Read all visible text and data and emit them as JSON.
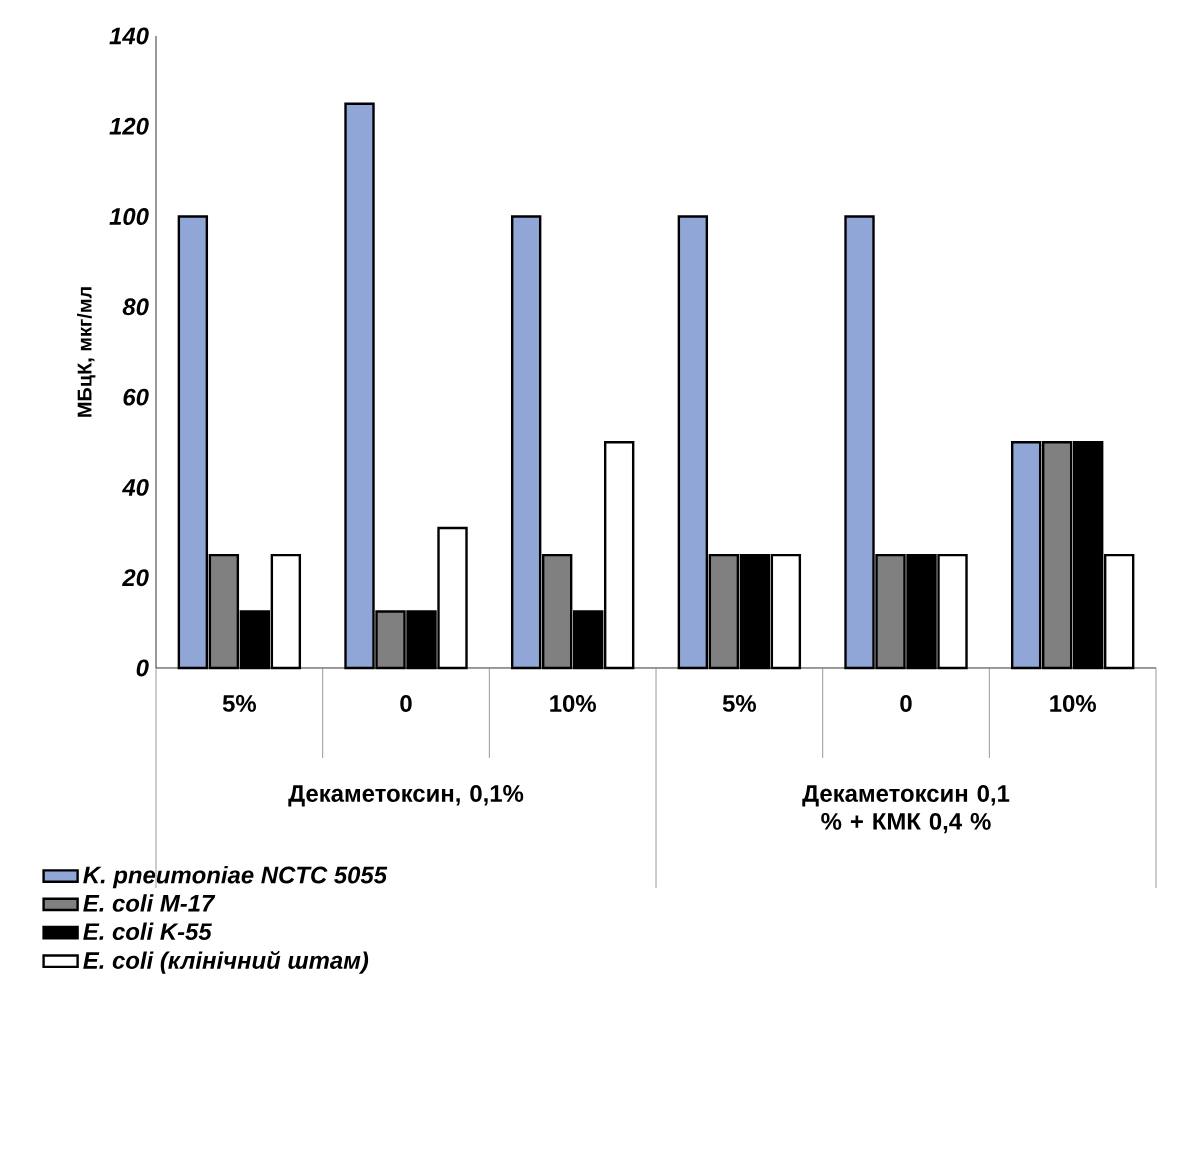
{
  "chart_data": {
    "type": "bar",
    "ylabel": "МБцК, мкг/мл",
    "categories": [
      "5%",
      "0",
      "10%",
      "5%",
      "0",
      "10%"
    ],
    "annotations": [
      "Декаметоксин, 0,1%",
      "Декаметоксин 0,1 % + КМК 0,4 %"
    ],
    "series": [
      {
        "name": "K. pneumoniae NCTC 5055",
        "color": "#8fa6d6",
        "values": [
          100,
          125,
          100,
          100,
          100,
          50
        ]
      },
      {
        "name": "E. coli M-17",
        "color": "#808080",
        "values": [
          25,
          12.5,
          25,
          25,
          25,
          50
        ]
      },
      {
        "name": "E. coli K-55",
        "color": "#000000",
        "values": [
          12.5,
          12.5,
          12.5,
          25,
          25,
          50
        ]
      },
      {
        "name": "E. coli (клінічний штам)",
        "color": "#ffffff",
        "values": [
          25,
          31,
          50,
          25,
          25,
          25
        ]
      }
    ],
    "ylim": [
      0,
      140
    ],
    "yticks": [
      0,
      20,
      40,
      60,
      80,
      100,
      120,
      140
    ],
    "legend": "bottom"
  }
}
